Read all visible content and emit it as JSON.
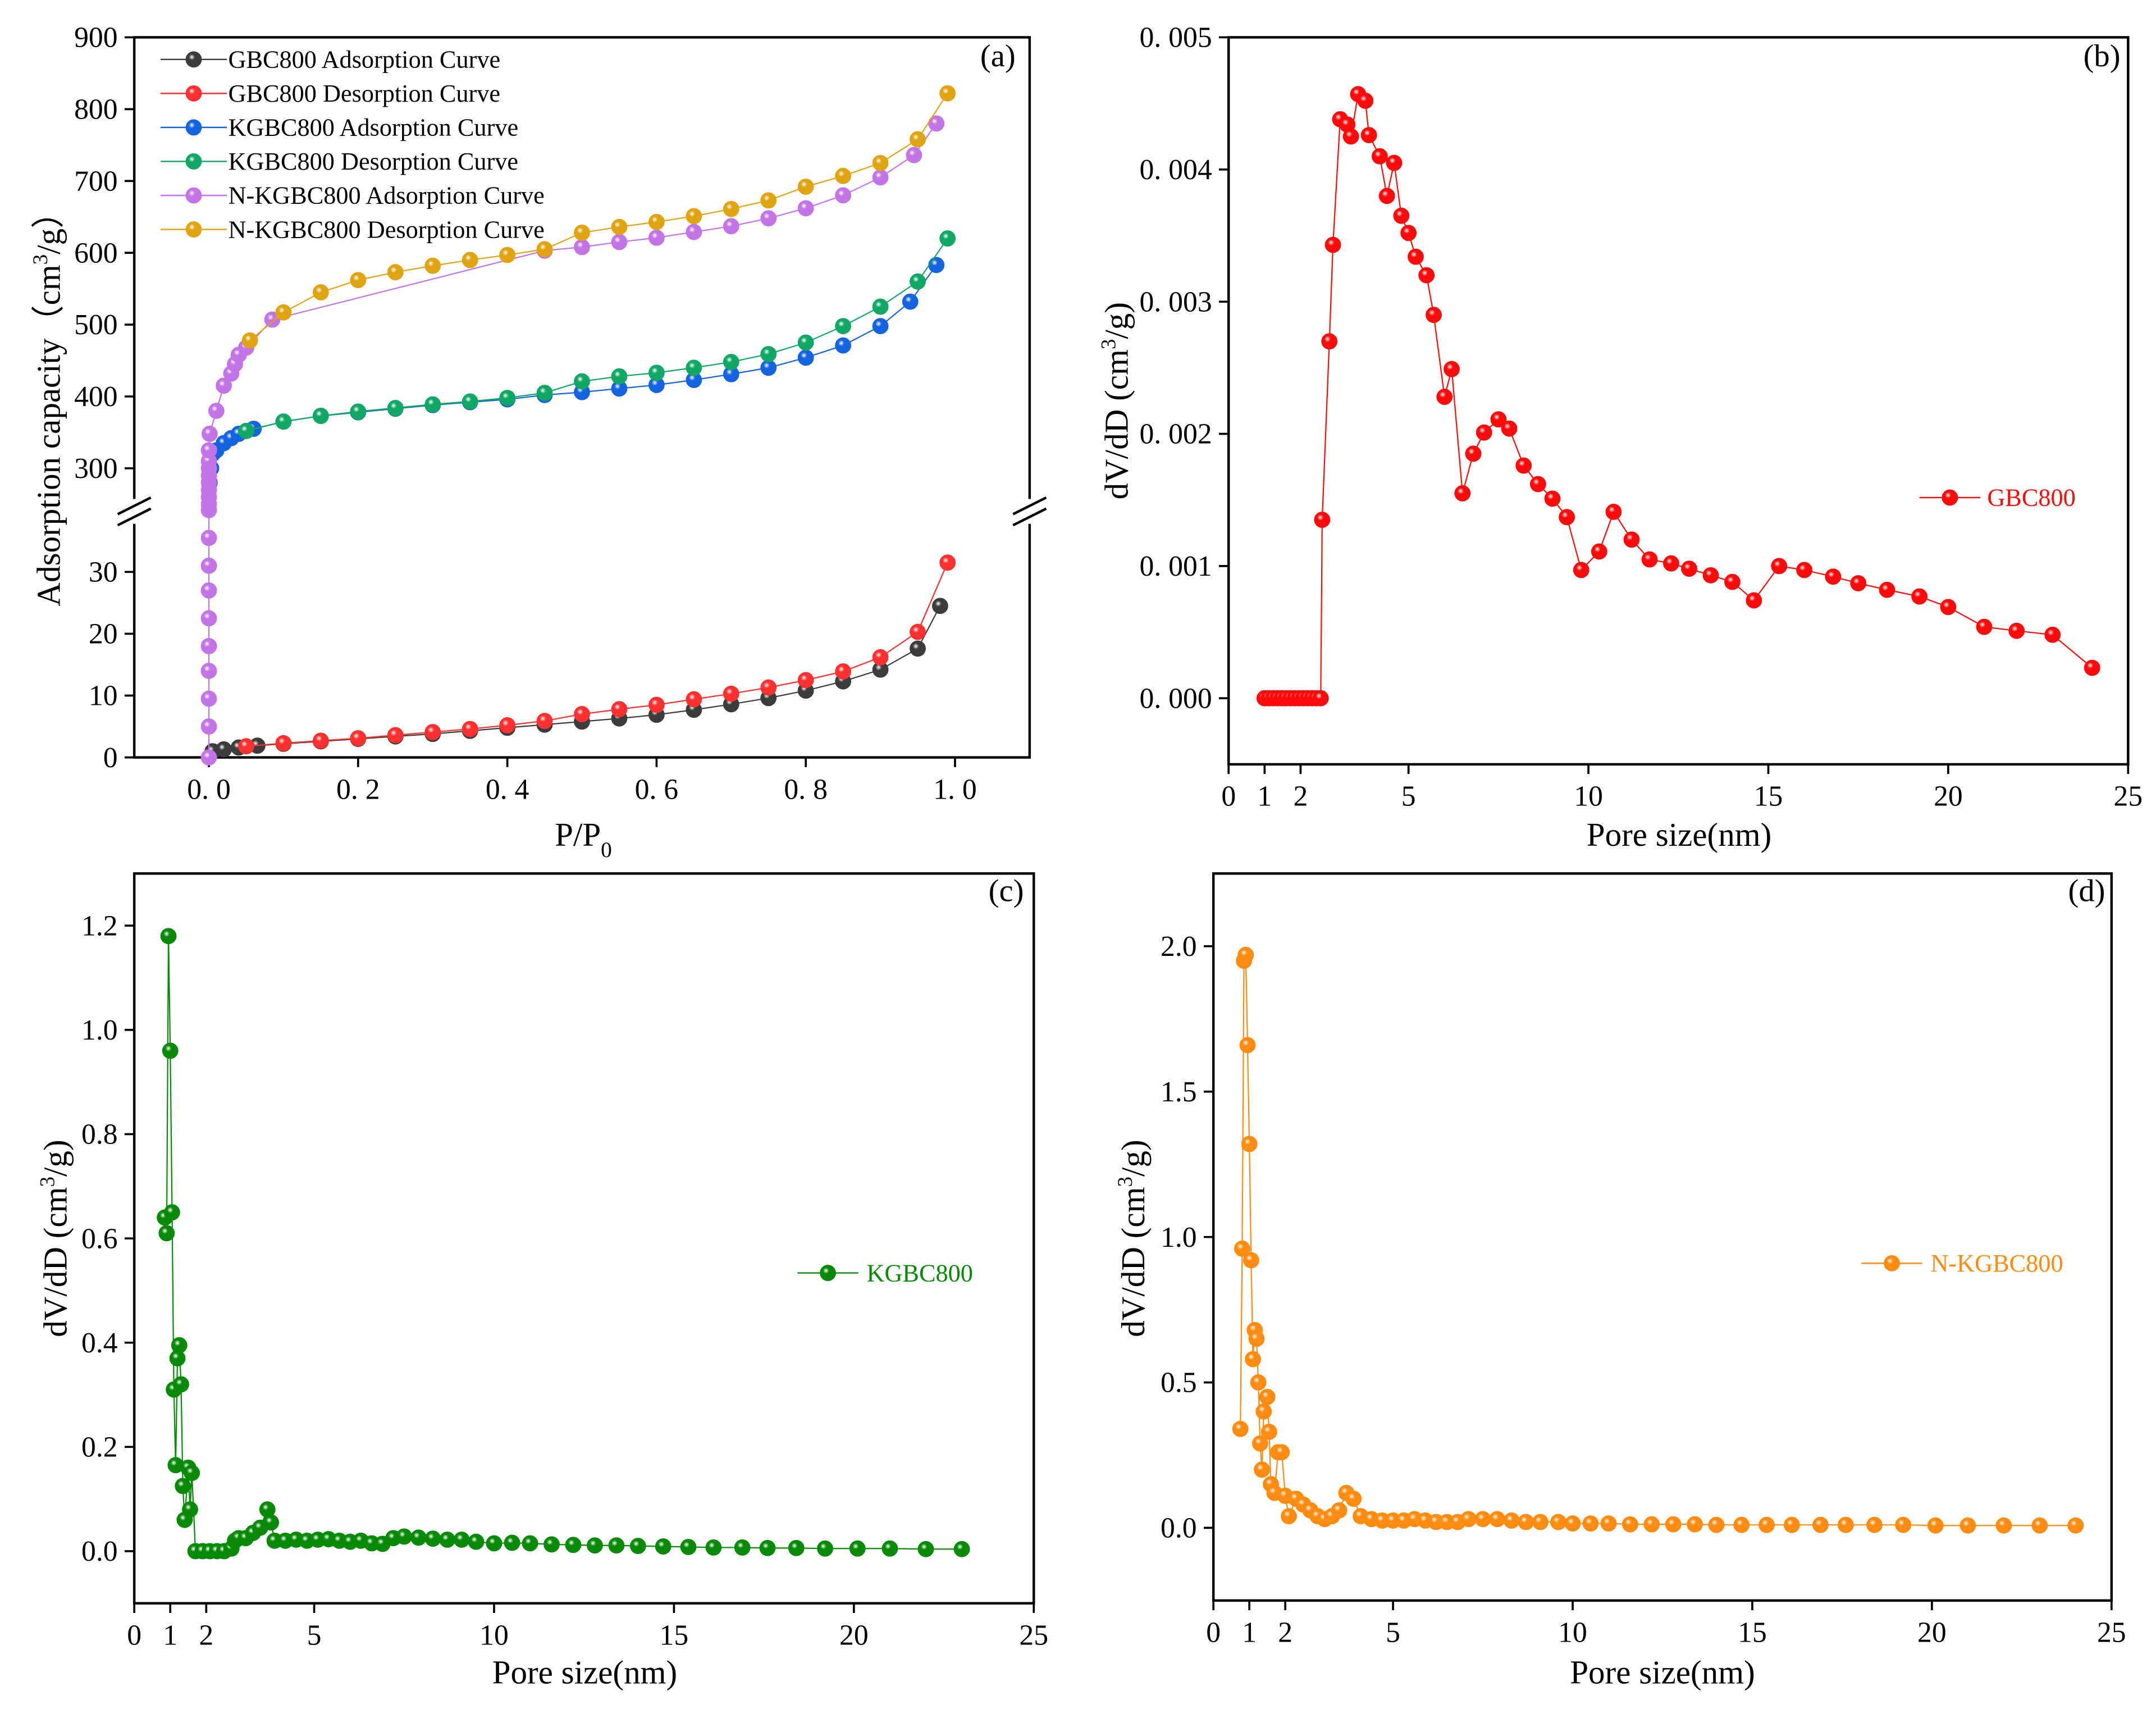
{
  "chart_data": [
    {
      "id": "a",
      "type": "line",
      "panel_label": "(a)",
      "xlabel_parts": [
        "P/P",
        "0"
      ],
      "ylabel_parts": [
        "Adsorption capacity（cm",
        "3",
        "/g）"
      ],
      "xlim": [
        -0.1,
        1.1
      ],
      "ylim_lower": [
        0,
        38
      ],
      "ylim_upper": [
        240,
        900
      ],
      "axis_break": true,
      "xticks": [
        {
          "v": 0,
          "t": "0. 0"
        },
        {
          "v": 0.2,
          "t": "0. 2"
        },
        {
          "v": 0.4,
          "t": "0. 4"
        },
        {
          "v": 0.6,
          "t": "0. 6"
        },
        {
          "v": 0.8,
          "t": "0. 8"
        },
        {
          "v": 1.0,
          "t": "1. 0"
        }
      ],
      "yticks": [
        {
          "v": 0,
          "t": "0"
        },
        {
          "v": 10,
          "t": "10"
        },
        {
          "v": 20,
          "t": "20"
        },
        {
          "v": 30,
          "t": "30"
        },
        {
          "v": 300,
          "t": "300"
        },
        {
          "v": 400,
          "t": "400"
        },
        {
          "v": 500,
          "t": "500"
        },
        {
          "v": 600,
          "t": "600"
        },
        {
          "v": 700,
          "t": "700"
        },
        {
          "v": 800,
          "t": "800"
        },
        {
          "v": 900,
          "t": "900"
        }
      ],
      "legend_placement": "top-left",
      "series": [
        {
          "name": "GBC800 Adsorption Curve",
          "color": "#3c3c3c",
          "x": [
            0.005,
            0.02,
            0.04,
            0.065,
            0.1,
            0.15,
            0.2,
            0.25,
            0.3,
            0.35,
            0.4,
            0.45,
            0.5,
            0.55,
            0.6,
            0.65,
            0.7,
            0.75,
            0.8,
            0.85,
            0.9,
            0.95,
            0.98
          ],
          "y": [
            1.0,
            1.3,
            1.6,
            1.9,
            2.2,
            2.6,
            3.0,
            3.4,
            3.8,
            4.3,
            4.8,
            5.3,
            5.8,
            6.3,
            6.9,
            7.7,
            8.6,
            9.6,
            10.8,
            12.3,
            14.2,
            17.6,
            24.5
          ]
        },
        {
          "name": "GBC800 Desorption Curve",
          "color": "#ff3030",
          "x": [
            0.99,
            0.95,
            0.9,
            0.85,
            0.8,
            0.75,
            0.7,
            0.65,
            0.6,
            0.55,
            0.5,
            0.45,
            0.4,
            0.35,
            0.3,
            0.25,
            0.2,
            0.15,
            0.1,
            0.05
          ],
          "y": [
            31.5,
            20.3,
            16.2,
            13.9,
            12.5,
            11.3,
            10.3,
            9.4,
            8.5,
            7.8,
            7.0,
            5.9,
            5.2,
            4.6,
            4.1,
            3.6,
            3.1,
            2.7,
            2.3,
            1.8
          ]
        },
        {
          "name": "KGBC800 Adsorption Curve",
          "color": "#1463e0",
          "x": [
            0.001,
            0.003,
            0.005,
            0.01,
            0.02,
            0.03,
            0.04,
            0.05,
            0.06,
            0.1,
            0.15,
            0.2,
            0.25,
            0.3,
            0.35,
            0.4,
            0.45,
            0.5,
            0.55,
            0.6,
            0.65,
            0.7,
            0.75,
            0.8,
            0.85,
            0.9,
            0.94,
            0.975
          ],
          "y": [
            280,
            300,
            320,
            325,
            335,
            342,
            348,
            352,
            355,
            365,
            373,
            378,
            383,
            388,
            392,
            396,
            402,
            406,
            411,
            416,
            423,
            431,
            440,
            454,
            471,
            498,
            532,
            583
          ]
        },
        {
          "name": "KGBC800 Desorption Curve",
          "color": "#10a864",
          "x": [
            0.99,
            0.95,
            0.9,
            0.85,
            0.8,
            0.75,
            0.7,
            0.65,
            0.6,
            0.55,
            0.5,
            0.45,
            0.4,
            0.35,
            0.3,
            0.25,
            0.2,
            0.15,
            0.1,
            0.05
          ],
          "y": [
            620,
            560,
            525,
            498,
            475,
            459,
            448,
            440,
            433,
            428,
            421,
            405,
            398,
            393,
            389,
            384,
            379,
            373,
            365,
            352
          ]
        },
        {
          "name": "N-KGBC800 Adsorption Curve",
          "color": "#c374e6",
          "x": [
            0,
            0,
            0,
            0,
            0,
            0,
            0,
            0,
            0,
            0,
            0,
            0,
            0,
            0,
            0,
            0,
            0,
            0,
            0.001,
            0.01,
            0.02,
            0.03,
            0.035,
            0.04,
            0.05,
            0.085,
            0.45,
            0.5,
            0.55,
            0.6,
            0.65,
            0.7,
            0.75,
            0.8,
            0.85,
            0.9,
            0.945,
            0.975
          ],
          "y": [
            0,
            5,
            9.5,
            14,
            18,
            22.5,
            27,
            31,
            35.5,
            40,
            250,
            260,
            270,
            280,
            290,
            300,
            310,
            325,
            348,
            380,
            415,
            432,
            445,
            458,
            468,
            507,
            603,
            608,
            615,
            621,
            629,
            637,
            648,
            662,
            680,
            705,
            736,
            780
          ]
        },
        {
          "name": "N-KGBC800 Desorption Curve",
          "color": "#e0a412",
          "x": [
            0.99,
            0.95,
            0.9,
            0.85,
            0.8,
            0.75,
            0.7,
            0.65,
            0.6,
            0.55,
            0.5,
            0.45,
            0.4,
            0.35,
            0.3,
            0.25,
            0.2,
            0.15,
            0.1,
            0.055
          ],
          "y": [
            822,
            758,
            725,
            707,
            692,
            673,
            661,
            651,
            643,
            636,
            628,
            605,
            597,
            590,
            582,
            573,
            562,
            545,
            517,
            478
          ]
        }
      ]
    },
    {
      "id": "b",
      "type": "line",
      "panel_label": "(b)",
      "xlabel_parts": [
        "Pore size(nm)"
      ],
      "ylabel_parts": [
        "dV/dD (cm",
        "3",
        "/g)"
      ],
      "xlim": [
        0,
        25
      ],
      "ylim": [
        -0.0005,
        0.005
      ],
      "xticks": [
        {
          "v": 0,
          "t": "0"
        },
        {
          "v": 1,
          "t": "1"
        },
        {
          "v": 2,
          "t": "2"
        },
        {
          "v": 5,
          "t": "5"
        },
        {
          "v": 10,
          "t": "10"
        },
        {
          "v": 15,
          "t": "15"
        },
        {
          "v": 20,
          "t": "20"
        },
        {
          "v": 25,
          "t": "25"
        }
      ],
      "yticks": [
        {
          "v": 0,
          "t": "0. 000"
        },
        {
          "v": 0.001,
          "t": "0. 001"
        },
        {
          "v": 0.002,
          "t": "0. 002"
        },
        {
          "v": 0.003,
          "t": "0. 003"
        },
        {
          "v": 0.004,
          "t": "0. 004"
        },
        {
          "v": 0.005,
          "t": "0. 005"
        }
      ],
      "legend_placement": "right",
      "series": [
        {
          "name": "GBC800",
          "color": "#ff0a0a",
          "x": [
            1.0,
            1.12,
            1.24,
            1.36,
            1.48,
            1.6,
            1.72,
            1.84,
            1.96,
            2.08,
            2.2,
            2.32,
            2.44,
            2.56,
            2.6,
            2.8,
            2.9,
            3.1,
            3.3,
            3.4,
            3.6,
            3.8,
            3.9,
            4.2,
            4.4,
            4.6,
            4.8,
            5.0,
            5.2,
            5.5,
            5.7,
            6.0,
            6.2,
            6.5,
            6.8,
            7.1,
            7.5,
            7.8,
            8.2,
            8.6,
            9.0,
            9.4,
            9.8,
            10.3,
            10.7,
            11.2,
            11.7,
            12.3,
            12.8,
            13.4,
            14.0,
            14.6,
            15.3,
            16.0,
            16.8,
            17.5,
            18.3,
            19.2,
            20.0,
            21.0,
            21.9,
            22.9,
            24.0
          ],
          "y": [
            0,
            0,
            0,
            0,
            0,
            0,
            0,
            0,
            0,
            0,
            0,
            0,
            0,
            0,
            0.00135,
            0.0027,
            0.00343,
            0.00438,
            0.00434,
            0.00425,
            0.00457,
            0.00452,
            0.00426,
            0.0041,
            0.0038,
            0.00405,
            0.00365,
            0.00352,
            0.00334,
            0.0032,
            0.0029,
            0.00228,
            0.00249,
            0.00155,
            0.00185,
            0.00201,
            0.00211,
            0.00204,
            0.00176,
            0.00162,
            0.00151,
            0.00137,
            0.00097,
            0.00111,
            0.00141,
            0.0012,
            0.00105,
            0.00102,
            0.00098,
            0.00093,
            0.00088,
            0.00074,
            0.001,
            0.00097,
            0.00092,
            0.00087,
            0.00082,
            0.00077,
            0.00069,
            0.00054,
            0.00051,
            0.00048,
            0.00023
          ]
        }
      ]
    },
    {
      "id": "c",
      "type": "line",
      "panel_label": "(c)",
      "xlabel_parts": [
        "Pore size(nm)"
      ],
      "ylabel_parts": [
        "dV/dD (cm",
        "3",
        "/g)"
      ],
      "xlim": [
        0,
        25
      ],
      "ylim": [
        -0.1,
        1.3
      ],
      "xticks": [
        {
          "v": 0,
          "t": "0"
        },
        {
          "v": 1,
          "t": "1"
        },
        {
          "v": 2,
          "t": "2"
        },
        {
          "v": 5,
          "t": "5"
        },
        {
          "v": 10,
          "t": "10"
        },
        {
          "v": 15,
          "t": "15"
        },
        {
          "v": 20,
          "t": "20"
        },
        {
          "v": 25,
          "t": "25"
        }
      ],
      "yticks": [
        {
          "v": 0,
          "t": "0.0"
        },
        {
          "v": 0.2,
          "t": "0.2"
        },
        {
          "v": 0.4,
          "t": "0.4"
        },
        {
          "v": 0.6,
          "t": "0.6"
        },
        {
          "v": 0.8,
          "t": "0.8"
        },
        {
          "v": 1.0,
          "t": "1.0"
        },
        {
          "v": 1.2,
          "t": "1.2"
        }
      ],
      "legend_placement": "right",
      "series": [
        {
          "name": "KGBC800",
          "color": "#078a07",
          "x": [
            0.85,
            0.9,
            0.95,
            1.0,
            1.05,
            1.1,
            1.15,
            1.2,
            1.25,
            1.3,
            1.35,
            1.4,
            1.5,
            1.55,
            1.6,
            1.7,
            1.9,
            2.1,
            2.3,
            2.5,
            2.7,
            2.8,
            2.9,
            3.1,
            3.3,
            3.5,
            3.7,
            3.8,
            3.9,
            4.2,
            4.5,
            4.8,
            5.1,
            5.4,
            5.7,
            6.0,
            6.3,
            6.6,
            6.9,
            7.2,
            7.5,
            7.9,
            8.3,
            8.7,
            9.1,
            9.5,
            10.0,
            10.5,
            11.0,
            11.6,
            12.2,
            12.8,
            13.4,
            14.0,
            14.7,
            15.4,
            16.1,
            16.9,
            17.6,
            18.4,
            19.2,
            20.1,
            21.0,
            22.0,
            23.0
          ],
          "y": [
            0.64,
            0.61,
            1.18,
            0.96,
            0.65,
            0.31,
            0.165,
            0.37,
            0.395,
            0.32,
            0.125,
            0.06,
            0.16,
            0.08,
            0.15,
            0.0,
            0.0,
            0.0,
            0.0,
            0.0,
            0.005,
            0.02,
            0.025,
            0.025,
            0.035,
            0.045,
            0.08,
            0.055,
            0.02,
            0.02,
            0.022,
            0.02,
            0.022,
            0.023,
            0.02,
            0.018,
            0.02,
            0.015,
            0.014,
            0.025,
            0.028,
            0.026,
            0.024,
            0.022,
            0.022,
            0.018,
            0.015,
            0.016,
            0.015,
            0.013,
            0.012,
            0.011,
            0.011,
            0.01,
            0.009,
            0.008,
            0.007,
            0.007,
            0.006,
            0.006,
            0.005,
            0.005,
            0.005,
            0.004,
            0.004
          ]
        }
      ]
    },
    {
      "id": "d",
      "type": "line",
      "panel_label": "(d)",
      "xlabel_parts": [
        "Pore size(nm)"
      ],
      "ylabel_parts": [
        "dV/dD (cm",
        "3",
        "/g)"
      ],
      "xlim": [
        0,
        25
      ],
      "ylim": [
        -0.25,
        2.25
      ],
      "xticks": [
        {
          "v": 0,
          "t": "0"
        },
        {
          "v": 1,
          "t": "1"
        },
        {
          "v": 2,
          "t": "2"
        },
        {
          "v": 5,
          "t": "5"
        },
        {
          "v": 10,
          "t": "10"
        },
        {
          "v": 15,
          "t": "15"
        },
        {
          "v": 20,
          "t": "20"
        },
        {
          "v": 25,
          "t": "25"
        }
      ],
      "yticks": [
        {
          "v": 0,
          "t": "0.0"
        },
        {
          "v": 0.5,
          "t": "0.5"
        },
        {
          "v": 1.0,
          "t": "1.0"
        },
        {
          "v": 1.5,
          "t": "1.5"
        },
        {
          "v": 2.0,
          "t": "2.0"
        }
      ],
      "legend_placement": "right",
      "series": [
        {
          "name": "N-KGBC800",
          "color": "#ff8c10",
          "x": [
            0.75,
            0.8,
            0.85,
            0.9,
            0.95,
            1.0,
            1.05,
            1.1,
            1.15,
            1.2,
            1.25,
            1.3,
            1.35,
            1.4,
            1.5,
            1.55,
            1.6,
            1.7,
            1.8,
            1.9,
            2.0,
            2.1,
            2.3,
            2.5,
            2.7,
            2.9,
            3.1,
            3.3,
            3.5,
            3.7,
            3.9,
            4.1,
            4.4,
            4.7,
            5.0,
            5.3,
            5.6,
            5.9,
            6.2,
            6.5,
            6.8,
            7.1,
            7.5,
            7.9,
            8.3,
            8.7,
            9.1,
            9.6,
            10.0,
            10.5,
            11.0,
            11.6,
            12.2,
            12.8,
            13.4,
            14.0,
            14.7,
            15.4,
            16.1,
            16.9,
            17.6,
            18.4,
            19.2,
            20.1,
            21.0,
            22.0,
            23.0,
            24.0
          ],
          "y": [
            0.34,
            0.96,
            1.95,
            1.97,
            1.66,
            1.32,
            0.92,
            0.58,
            0.68,
            0.65,
            0.5,
            0.29,
            0.2,
            0.4,
            0.45,
            0.33,
            0.15,
            0.12,
            0.26,
            0.26,
            0.11,
            0.04,
            0.1,
            0.08,
            0.06,
            0.04,
            0.03,
            0.04,
            0.06,
            0.12,
            0.1,
            0.04,
            0.03,
            0.025,
            0.025,
            0.025,
            0.03,
            0.025,
            0.02,
            0.02,
            0.02,
            0.03,
            0.03,
            0.03,
            0.025,
            0.02,
            0.02,
            0.02,
            0.015,
            0.015,
            0.015,
            0.012,
            0.012,
            0.012,
            0.012,
            0.01,
            0.01,
            0.01,
            0.01,
            0.01,
            0.01,
            0.01,
            0.01,
            0.008,
            0.008,
            0.008,
            0.008,
            0.008
          ]
        }
      ]
    }
  ]
}
